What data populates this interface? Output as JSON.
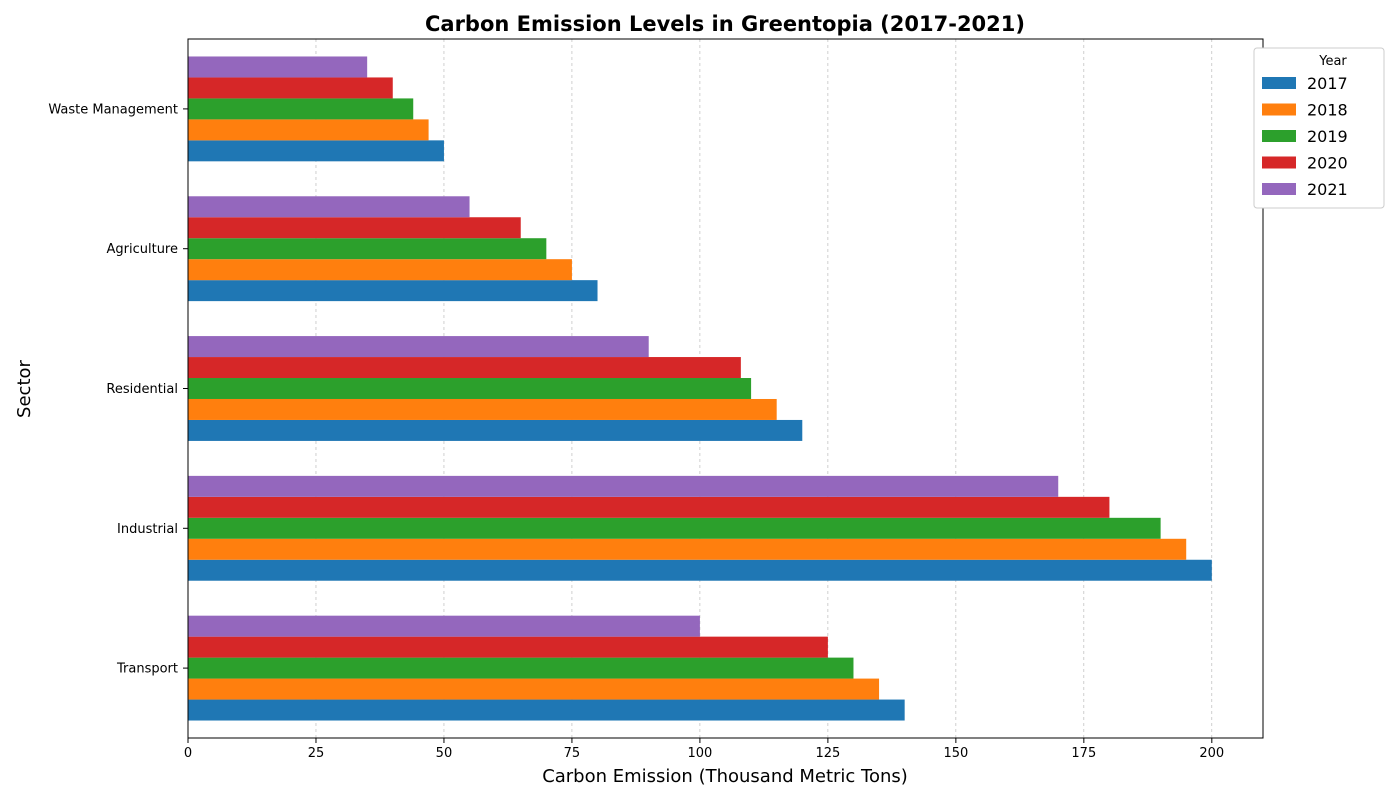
{
  "chart_data": {
    "type": "bar",
    "orientation": "horizontal",
    "title": "Carbon Emission Levels in Greentopia (2017-2021)",
    "xlabel": "Carbon Emission (Thousand Metric Tons)",
    "ylabel": "Sector",
    "categories": [
      "Transport",
      "Industrial",
      "Residential",
      "Agriculture",
      "Waste Management"
    ],
    "xlim": [
      0,
      210
    ],
    "xticks": [
      0,
      25,
      50,
      75,
      100,
      125,
      150,
      175,
      200
    ],
    "grid": "vertical dashed",
    "legend": {
      "title": "Year",
      "placement": "outside top-right"
    },
    "series": [
      {
        "name": "2017",
        "color": "#1f77b4",
        "values": [
          140,
          200,
          120,
          80,
          50
        ]
      },
      {
        "name": "2018",
        "color": "#ff7f0e",
        "values": [
          135,
          195,
          115,
          75,
          47
        ]
      },
      {
        "name": "2019",
        "color": "#2ca02c",
        "values": [
          130,
          190,
          110,
          70,
          44
        ]
      },
      {
        "name": "2020",
        "color": "#d62728",
        "values": [
          125,
          180,
          108,
          65,
          40
        ]
      },
      {
        "name": "2021",
        "color": "#9467bd",
        "values": [
          100,
          170,
          90,
          55,
          35
        ]
      }
    ]
  }
}
